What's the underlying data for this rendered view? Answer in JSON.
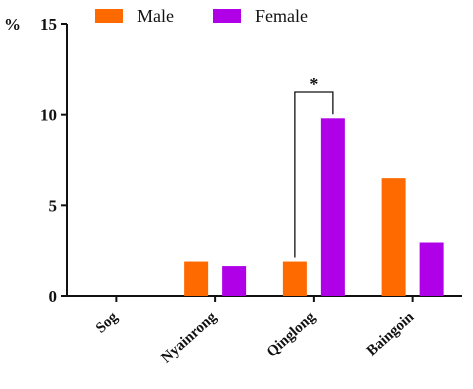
{
  "chart_data": {
    "type": "bar",
    "ylabel": "%",
    "ylim": [
      0,
      15
    ],
    "yticks": [
      0,
      5,
      10,
      15
    ],
    "categories": [
      "Sog",
      "Nyainrong",
      "Qinglong",
      "Baingoin"
    ],
    "series": [
      {
        "name": "Male",
        "color": "#ff6a00",
        "values": [
          0,
          1.9,
          1.9,
          6.5
        ]
      },
      {
        "name": "Female",
        "color": "#b000e8",
        "values": [
          0,
          1.65,
          9.8,
          2.95
        ]
      }
    ],
    "legend": "top",
    "grid": false,
    "annotations": [
      {
        "text": "*",
        "category": "Qinglong",
        "type": "significance-bracket"
      }
    ]
  }
}
